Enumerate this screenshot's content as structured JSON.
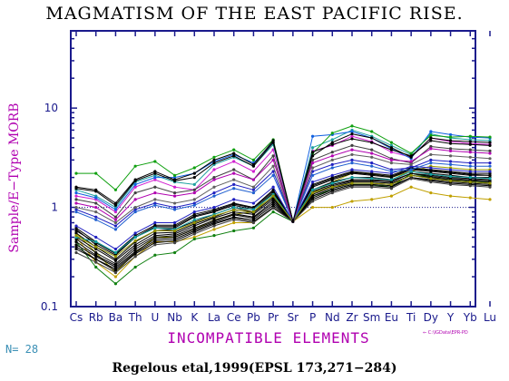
{
  "title": "MAGMATISM OF THE EAST PACIFIC RISE.",
  "n_label": "N= 28",
  "citation": "Regelous etal,1999(EPSL 173,271−284)",
  "file_tag": "⇐ C:\\IGData\\EPR-PD",
  "colors": {
    "axis": "#1a1a8c",
    "ylabel": "#b000b0",
    "xlabel": "#b000b0",
    "ticklabel": "#1a1a8c",
    "refline": "#1a1a8c"
  },
  "chart_data": {
    "type": "line",
    "xlabel": "INCOMPATIBLE ELEMENTS",
    "ylabel": "Sample/E−Type MORB",
    "yscale": "log",
    "ylim": [
      0.1,
      60
    ],
    "yticks": [
      {
        "value": 0.1,
        "label": "0.1"
      },
      {
        "value": 1,
        "label": "1"
      },
      {
        "value": 10,
        "label": "10"
      }
    ],
    "reference_line": 1,
    "categories": [
      "Cs",
      "Rb",
      "Ba",
      "Th",
      "U",
      "Nb",
      "K",
      "La",
      "Ce",
      "Pb",
      "Pr",
      "Sr",
      "P",
      "Nd",
      "Zr",
      "Sm",
      "Eu",
      "Ti",
      "Dy",
      "Y",
      "Yb",
      "Lu"
    ],
    "series": [
      {
        "color": "#d020d0",
        "values": [
          1.3,
          1.2,
          0.9,
          1.6,
          1.9,
          1.6,
          1.5,
          2.4,
          2.9,
          2.3,
          3.8,
          0.72,
          3.7,
          4.2,
          5.2,
          4.6,
          3.6,
          3.2,
          5.0,
          4.6,
          4.4,
          4.3
        ]
      },
      {
        "color": "#20a0a0",
        "values": [
          1.5,
          1.3,
          1.0,
          1.8,
          2.1,
          1.8,
          1.7,
          2.7,
          3.2,
          2.6,
          4.3,
          0.72,
          4.0,
          4.8,
          6.0,
          5.2,
          4.2,
          3.4,
          5.5,
          5.0,
          4.8,
          4.7
        ]
      },
      {
        "color": "#1060e0",
        "values": [
          1.4,
          1.25,
          0.95,
          1.7,
          2.0,
          2.0,
          2.2,
          2.9,
          3.4,
          2.8,
          4.5,
          0.72,
          5.2,
          5.4,
          5.8,
          5.0,
          3.9,
          3.1,
          5.8,
          5.4,
          5.1,
          5.0
        ]
      },
      {
        "color": "#10a010",
        "values": [
          2.2,
          2.2,
          1.5,
          2.6,
          2.9,
          2.1,
          2.5,
          3.2,
          3.8,
          3.0,
          4.8,
          0.72,
          3.5,
          5.6,
          6.6,
          5.8,
          4.5,
          3.5,
          5.3,
          5.1,
          5.2,
          5.1
        ]
      },
      {
        "color": "#000000",
        "values": [
          1.6,
          1.5,
          1.1,
          1.9,
          2.3,
          1.9,
          2.2,
          3.0,
          3.5,
          2.7,
          4.7,
          0.72,
          3.3,
          4.5,
          5.5,
          5.0,
          4.0,
          3.2,
          5.0,
          4.7,
          4.6,
          4.5
        ]
      },
      {
        "color": "#404040",
        "values": [
          1.2,
          1.1,
          0.8,
          1.4,
          1.6,
          1.4,
          1.5,
          2.0,
          2.4,
          1.9,
          3.3,
          0.72,
          3.0,
          3.6,
          4.2,
          3.8,
          3.1,
          2.8,
          4.1,
          3.9,
          3.8,
          3.7
        ]
      },
      {
        "color": "#2020c0",
        "values": [
          0.95,
          0.8,
          0.65,
          0.95,
          1.1,
          1.0,
          1.1,
          1.4,
          1.7,
          1.5,
          2.3,
          0.72,
          2.3,
          2.7,
          3.0,
          2.8,
          2.4,
          2.5,
          3.0,
          2.9,
          2.8,
          2.8
        ]
      },
      {
        "color": "#a0a000",
        "values": [
          0.55,
          0.35,
          0.22,
          0.35,
          0.5,
          0.5,
          0.6,
          0.75,
          0.85,
          0.9,
          1.4,
          0.72,
          1.4,
          1.8,
          2.2,
          2.2,
          2.0,
          2.3,
          2.6,
          2.5,
          2.4,
          2.4
        ]
      },
      {
        "color": "#c0a000",
        "values": [
          0.5,
          0.28,
          0.2,
          0.32,
          0.45,
          0.45,
          0.5,
          0.6,
          0.7,
          0.7,
          1.0,
          0.72,
          1.0,
          1.0,
          1.15,
          1.2,
          1.3,
          1.6,
          1.4,
          1.3,
          1.25,
          1.2
        ]
      },
      {
        "color": "#108010",
        "values": [
          0.45,
          0.25,
          0.17,
          0.25,
          0.33,
          0.35,
          0.48,
          0.52,
          0.58,
          0.62,
          0.9,
          0.72,
          1.3,
          1.5,
          1.7,
          1.7,
          1.6,
          2.2,
          2.0,
          1.9,
          1.8,
          1.8
        ]
      },
      {
        "color": "#000000",
        "values": [
          0.6,
          0.42,
          0.33,
          0.5,
          0.62,
          0.62,
          0.8,
          0.9,
          1.05,
          0.95,
          1.4,
          0.72,
          1.6,
          1.9,
          2.2,
          2.1,
          2.0,
          2.4,
          2.3,
          2.2,
          2.1,
          2.1
        ]
      },
      {
        "color": "#000000",
        "values": [
          0.55,
          0.4,
          0.3,
          0.45,
          0.58,
          0.6,
          0.72,
          0.85,
          1.0,
          0.9,
          1.3,
          0.72,
          1.5,
          1.8,
          2.0,
          2.0,
          1.9,
          2.3,
          2.2,
          2.1,
          2.0,
          2.0
        ]
      },
      {
        "color": "#000000",
        "values": [
          0.5,
          0.38,
          0.29,
          0.42,
          0.55,
          0.56,
          0.68,
          0.8,
          0.95,
          0.88,
          1.25,
          0.72,
          1.45,
          1.7,
          1.9,
          1.9,
          1.85,
          2.2,
          2.1,
          2.0,
          1.95,
          1.9
        ]
      },
      {
        "color": "#000000",
        "values": [
          0.48,
          0.35,
          0.27,
          0.4,
          0.52,
          0.54,
          0.65,
          0.78,
          0.9,
          0.85,
          1.2,
          0.72,
          1.4,
          1.65,
          1.85,
          1.85,
          1.8,
          2.2,
          2.05,
          1.95,
          1.9,
          1.85
        ]
      },
      {
        "color": "#000000",
        "values": [
          0.45,
          0.33,
          0.26,
          0.38,
          0.5,
          0.52,
          0.62,
          0.74,
          0.86,
          0.8,
          1.15,
          0.72,
          1.35,
          1.6,
          1.8,
          1.8,
          1.75,
          2.1,
          2.0,
          1.9,
          1.85,
          1.8
        ]
      },
      {
        "color": "#000000",
        "values": [
          0.42,
          0.32,
          0.25,
          0.36,
          0.48,
          0.5,
          0.6,
          0.72,
          0.84,
          0.78,
          1.1,
          0.72,
          1.3,
          1.55,
          1.75,
          1.75,
          1.7,
          2.1,
          1.95,
          1.85,
          1.8,
          1.75
        ]
      },
      {
        "color": "#000000",
        "values": [
          0.4,
          0.3,
          0.24,
          0.35,
          0.46,
          0.48,
          0.58,
          0.7,
          0.8,
          0.75,
          1.05,
          0.72,
          1.25,
          1.5,
          1.7,
          1.7,
          1.65,
          2.0,
          1.9,
          1.8,
          1.75,
          1.7
        ]
      },
      {
        "color": "#000000",
        "values": [
          0.38,
          0.3,
          0.23,
          0.34,
          0.44,
          0.46,
          0.56,
          0.68,
          0.78,
          0.72,
          1.0,
          0.72,
          1.2,
          1.45,
          1.65,
          1.65,
          1.6,
          2.0,
          1.85,
          1.75,
          1.7,
          1.65
        ]
      },
      {
        "color": "#000000",
        "values": [
          0.62,
          0.45,
          0.35,
          0.52,
          0.66,
          0.66,
          0.85,
          0.95,
          1.1,
          1.0,
          1.5,
          0.72,
          1.7,
          2.0,
          2.3,
          2.2,
          2.1,
          2.5,
          2.4,
          2.3,
          2.2,
          2.2
        ]
      },
      {
        "color": "#000000",
        "values": [
          0.58,
          0.44,
          0.34,
          0.5,
          0.64,
          0.64,
          0.82,
          0.92,
          1.08,
          0.98,
          1.45,
          0.72,
          1.65,
          1.95,
          2.25,
          2.15,
          2.05,
          2.45,
          2.35,
          2.25,
          2.15,
          2.1
        ]
      },
      {
        "color": "#2020c0",
        "values": [
          0.65,
          0.5,
          0.38,
          0.55,
          0.7,
          0.7,
          0.9,
          1.0,
          1.2,
          1.1,
          1.6,
          0.72,
          1.8,
          2.1,
          2.4,
          2.3,
          2.2,
          2.6,
          2.5,
          2.4,
          2.3,
          2.3
        ]
      },
      {
        "color": "#10a0a0",
        "values": [
          0.5,
          0.45,
          0.35,
          0.5,
          0.62,
          0.6,
          0.75,
          0.85,
          1.0,
          0.95,
          1.35,
          0.72,
          1.5,
          1.75,
          2.0,
          1.95,
          1.9,
          2.3,
          2.15,
          2.05,
          2.0,
          1.95
        ]
      },
      {
        "color": "#909000",
        "values": [
          0.52,
          0.4,
          0.32,
          0.46,
          0.58,
          0.58,
          0.7,
          0.82,
          0.94,
          0.9,
          1.3,
          0.72,
          1.4,
          1.6,
          1.75,
          1.75,
          1.7,
          2.1,
          1.95,
          1.85,
          1.8,
          1.75
        ]
      },
      {
        "color": "#404040",
        "values": [
          0.35,
          0.28,
          0.22,
          0.32,
          0.42,
          0.44,
          0.54,
          0.65,
          0.75,
          0.7,
          0.98,
          0.72,
          1.15,
          1.4,
          1.6,
          1.6,
          1.55,
          1.95,
          1.8,
          1.7,
          1.65,
          1.6
        ]
      },
      {
        "color": "#2060d0",
        "values": [
          0.9,
          0.75,
          0.6,
          0.9,
          1.05,
          0.95,
          1.05,
          1.3,
          1.55,
          1.4,
          2.1,
          0.72,
          2.1,
          2.5,
          2.8,
          2.6,
          2.3,
          2.4,
          2.8,
          2.7,
          2.6,
          2.6
        ]
      },
      {
        "color": "#606060",
        "values": [
          1.0,
          0.9,
          0.7,
          1.0,
          1.2,
          1.1,
          1.2,
          1.6,
          1.9,
          1.6,
          2.6,
          0.72,
          2.5,
          3.0,
          3.4,
          3.2,
          2.8,
          2.7,
          3.4,
          3.3,
          3.2,
          3.1
        ]
      },
      {
        "color": "#b000b0",
        "values": [
          1.1,
          1.0,
          0.75,
          1.2,
          1.4,
          1.3,
          1.4,
          1.9,
          2.2,
          1.9,
          3.0,
          0.72,
          2.8,
          3.3,
          3.8,
          3.5,
          3.0,
          2.9,
          3.9,
          3.7,
          3.6,
          3.5
        ]
      },
      {
        "color": "#000000",
        "values": [
          1.55,
          1.45,
          1.05,
          1.85,
          2.2,
          1.85,
          2.0,
          2.8,
          3.3,
          2.6,
          4.5,
          0.72,
          3.6,
          4.3,
          4.9,
          4.5,
          3.8,
          3.3,
          4.7,
          4.4,
          4.3,
          4.2
        ]
      }
    ]
  }
}
